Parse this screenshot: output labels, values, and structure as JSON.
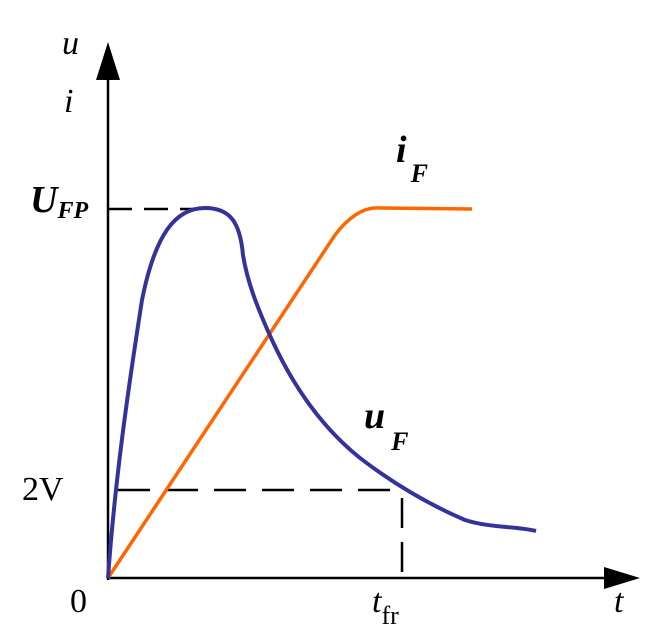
{
  "axes": {
    "y_label_top": "u",
    "y_label_bottom": "i",
    "x_label": "t",
    "origin_label": "0"
  },
  "y_ticks": {
    "peak_main": "U",
    "peak_sub": "FP",
    "two_volt": "2V"
  },
  "x_ticks": {
    "tfr_main": "t",
    "tfr_sub": "fr"
  },
  "curves": {
    "iF_main": "i",
    "iF_sub": "F",
    "uF_main": "u",
    "uF_sub": "F"
  },
  "colors": {
    "uF_curve": "#333399",
    "iF_curve": "#ff6600",
    "axes": "#000000",
    "dashes": "#000000"
  }
}
